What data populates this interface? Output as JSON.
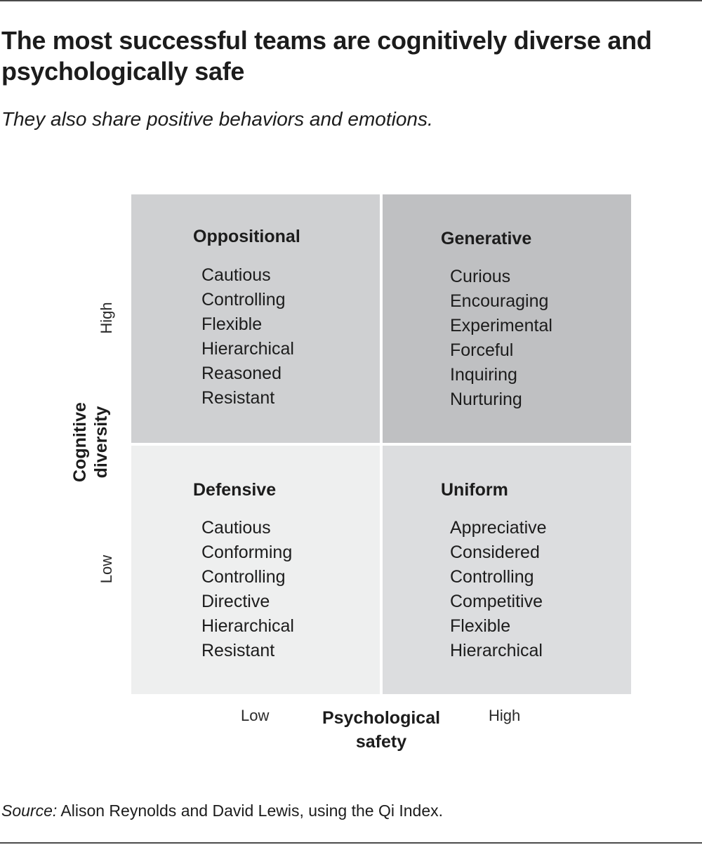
{
  "header": {
    "title": "The most successful teams are cognitively diverse and psychologically safe",
    "subtitle": "They also share positive behaviors and emotions."
  },
  "axes": {
    "y_label_line1": "Cognitive",
    "y_label_line2": "diversity",
    "y_high": "High",
    "y_low": "Low",
    "x_label_line1": "Psychological",
    "x_label_line2": "safety",
    "x_low": "Low",
    "x_high": "High"
  },
  "quadrants": {
    "top_left": {
      "name": "Oppositional",
      "color": "#cfd0d2",
      "traits": [
        "Cautious",
        "Controlling",
        "Flexible",
        "Hierarchical",
        "Reasoned",
        "Resistant"
      ]
    },
    "top_right": {
      "name": "Generative",
      "color": "#bfc0c2",
      "traits": [
        "Curious",
        "Encouraging",
        "Experimental",
        "Forceful",
        "Inquiring",
        "Nurturing"
      ]
    },
    "bottom_left": {
      "name": "Defensive",
      "color": "#eeefef",
      "traits": [
        "Cautious",
        "Conforming",
        "Controlling",
        "Directive",
        "Hierarchical",
        "Resistant"
      ]
    },
    "bottom_right": {
      "name": "Uniform",
      "color": "#dcdddf",
      "traits": [
        "Appreciative",
        "Considered",
        "Controlling",
        "Competitive",
        "Flexible",
        "Hierarchical"
      ]
    }
  },
  "footer": {
    "source_label": "Source:",
    "source_text": " Alison Reynolds and David Lewis, using the Qi Index."
  },
  "chart_data": {
    "type": "table",
    "title": "The most successful teams are cognitively diverse and psychologically safe",
    "subtitle": "They also share positive behaviors and emotions.",
    "xlabel": "Psychological safety",
    "ylabel": "Cognitive diversity",
    "x_categories": [
      "Low",
      "High"
    ],
    "y_categories": [
      "High",
      "Low"
    ],
    "cells": [
      {
        "x": "Low",
        "y": "High",
        "name": "Oppositional",
        "traits": [
          "Cautious",
          "Controlling",
          "Flexible",
          "Hierarchical",
          "Reasoned",
          "Resistant"
        ]
      },
      {
        "x": "High",
        "y": "High",
        "name": "Generative",
        "traits": [
          "Curious",
          "Encouraging",
          "Experimental",
          "Forceful",
          "Inquiring",
          "Nurturing"
        ]
      },
      {
        "x": "Low",
        "y": "Low",
        "name": "Defensive",
        "traits": [
          "Cautious",
          "Conforming",
          "Controlling",
          "Directive",
          "Hierarchical",
          "Resistant"
        ]
      },
      {
        "x": "High",
        "y": "Low",
        "name": "Uniform",
        "traits": [
          "Appreciative",
          "Considered",
          "Controlling",
          "Competitive",
          "Flexible",
          "Hierarchical"
        ]
      }
    ],
    "source": "Source: Alison Reynolds and David Lewis, using the Qi Index."
  }
}
